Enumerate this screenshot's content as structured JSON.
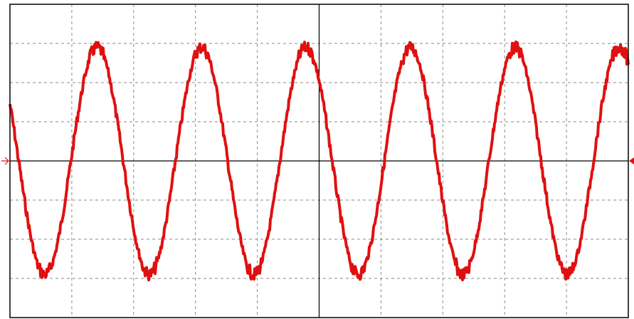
{
  "chart_data": {
    "type": "line",
    "title": "",
    "xlabel": "",
    "ylabel": "",
    "grid": true,
    "grid_divisions": {
      "x": 10,
      "y": 8
    },
    "xlim": [
      0,
      10
    ],
    "ylim": [
      -4,
      4
    ],
    "series": [
      {
        "waveform": "sine",
        "amplitude_div": 2.9,
        "cycles_on_screen": 5.9,
        "period_div": 1.69,
        "phase_at_start_deg": 150,
        "noise_div": 0.12,
        "color": "#e01010"
      }
    ],
    "trigger_markers": {
      "left": "arrow-right",
      "right": "arrow-left",
      "level_div": 0
    }
  },
  "colors": {
    "background": "#ffffff",
    "frame": "#000000",
    "grid": "#8a8a8a",
    "center_axis": "#000000",
    "trace": "#e01010",
    "marker": "#e01010"
  }
}
